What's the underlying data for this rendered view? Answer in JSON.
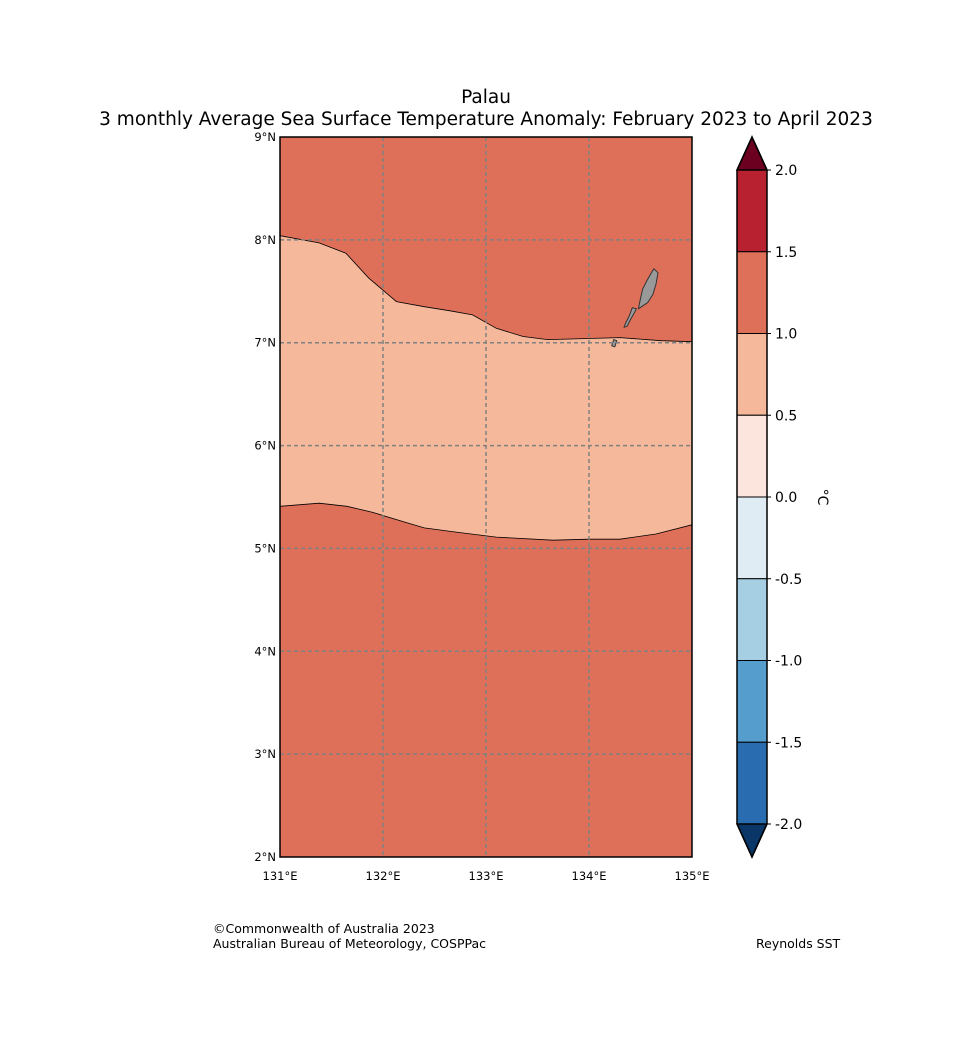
{
  "title": {
    "line1": "Palau",
    "line2": "3 monthly Average Sea Surface Temperature Anomaly: February 2023 to April 2023"
  },
  "map": {
    "lon_range": [
      131,
      135
    ],
    "lat_range": [
      2,
      9
    ],
    "lon_ticks": [
      {
        "value": 131,
        "label": "131°E"
      },
      {
        "value": 132,
        "label": "132°E"
      },
      {
        "value": 133,
        "label": "133°E"
      },
      {
        "value": 134,
        "label": "134°E"
      },
      {
        "value": 135,
        "label": "135°E"
      }
    ],
    "lat_ticks": [
      {
        "value": 9,
        "label": "9°N"
      },
      {
        "value": 8,
        "label": "8°N"
      },
      {
        "value": 7,
        "label": "7°N"
      },
      {
        "value": 6,
        "label": "6°N"
      },
      {
        "value": 5,
        "label": "5°N"
      },
      {
        "value": 4,
        "label": "4°N"
      },
      {
        "value": 3,
        "label": "3°N"
      },
      {
        "value": 2,
        "label": "2°N"
      }
    ],
    "background_band": {
      "range": "1.0 to 1.5",
      "color": "#de6f58"
    },
    "contours": [
      {
        "name": "northern-band-0.5-1.0",
        "range": "0.5 to 1.0",
        "color": "#f5b89b",
        "upper_boundary": [
          [
            131.0,
            8.04
          ],
          [
            131.38,
            7.97
          ],
          [
            131.64,
            7.87
          ],
          [
            131.86,
            7.63
          ],
          [
            132.13,
            7.4
          ],
          [
            132.4,
            7.35
          ],
          [
            132.65,
            7.31
          ],
          [
            132.87,
            7.27
          ],
          [
            133.1,
            7.14
          ],
          [
            133.36,
            7.06
          ],
          [
            133.6,
            7.03
          ],
          [
            133.95,
            7.04
          ],
          [
            134.3,
            7.05
          ],
          [
            134.7,
            7.02
          ],
          [
            135.0,
            7.01
          ]
        ],
        "lower_boundary": [
          [
            135.0,
            5.23
          ],
          [
            134.65,
            5.14
          ],
          [
            134.3,
            5.09
          ],
          [
            134.0,
            5.09
          ],
          [
            133.65,
            5.08
          ],
          [
            133.1,
            5.11
          ],
          [
            132.7,
            5.16
          ],
          [
            132.4,
            5.2
          ],
          [
            132.2,
            5.26
          ],
          [
            131.9,
            5.35
          ],
          [
            131.65,
            5.41
          ],
          [
            131.38,
            5.44
          ],
          [
            131.0,
            5.41
          ]
        ]
      }
    ],
    "land": [
      {
        "name": "Babeldaob",
        "color": "#999999",
        "outline": [
          [
            134.63,
            7.72
          ],
          [
            134.67,
            7.68
          ],
          [
            134.65,
            7.57
          ],
          [
            134.62,
            7.47
          ],
          [
            134.57,
            7.39
          ],
          [
            134.51,
            7.35
          ],
          [
            134.48,
            7.33
          ],
          [
            134.5,
            7.43
          ],
          [
            134.52,
            7.52
          ],
          [
            134.56,
            7.6
          ],
          [
            134.6,
            7.67
          ]
        ]
      },
      {
        "name": "Koror-Rock-Islands",
        "color": "#999999",
        "outline": [
          [
            134.42,
            7.34
          ],
          [
            134.46,
            7.33
          ],
          [
            134.44,
            7.29
          ],
          [
            134.4,
            7.22
          ],
          [
            134.37,
            7.16
          ],
          [
            134.34,
            7.15
          ],
          [
            134.36,
            7.2
          ],
          [
            134.39,
            7.26
          ]
        ]
      },
      {
        "name": "Peleliu",
        "color": "#999999",
        "outline": [
          [
            134.24,
            7.03
          ],
          [
            134.27,
            7.02
          ],
          [
            134.25,
            6.96
          ],
          [
            134.22,
            6.97
          ]
        ]
      }
    ]
  },
  "colorbar": {
    "unit": "°C",
    "levels": [
      {
        "label": "2.0",
        "value": 2.0
      },
      {
        "label": "1.5",
        "value": 1.5
      },
      {
        "label": "1.0",
        "value": 1.0
      },
      {
        "label": "0.5",
        "value": 0.5
      },
      {
        "label": "0.0",
        "value": 0.0
      },
      {
        "label": "-0.5",
        "value": -0.5
      },
      {
        "label": "-1.0",
        "value": -1.0
      },
      {
        "label": "-1.5",
        "value": -1.5
      },
      {
        "label": "-2.0",
        "value": -2.0
      }
    ],
    "bins": [
      {
        "range": "1.5 to 2.0",
        "color": "#b82130"
      },
      {
        "range": "1.0 to 1.5",
        "color": "#de6f58"
      },
      {
        "range": "0.5 to 1.0",
        "color": "#f5b89b"
      },
      {
        "range": "0.0 to 0.5",
        "color": "#fbe5dc"
      },
      {
        "range": "-0.5 to 0.0",
        "color": "#e0ecf4"
      },
      {
        "range": "-1.0 to -0.5",
        "color": "#a6cfe4"
      },
      {
        "range": "-1.5 to -1.0",
        "color": "#559dcc"
      },
      {
        "range": "-2.0 to -1.5",
        "color": "#2a6cb0"
      }
    ],
    "over_color": "#6b0021",
    "under_color": "#0a3668"
  },
  "footer": {
    "copyright": "©Commonwealth of Australia 2023",
    "agency": "Australian Bureau of Meteorology, COSPPac",
    "source": "Reynolds SST"
  }
}
